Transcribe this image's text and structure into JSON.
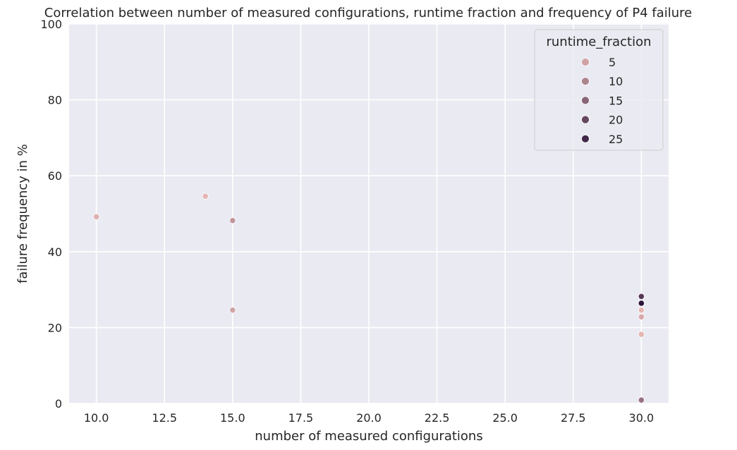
{
  "chart_data": {
    "type": "scatter",
    "title": "Correlation between number of measured configurations, runtime fraction and frequency of P4 failure",
    "xlabel": "number of measured configurations",
    "ylabel": "failure frequency in %",
    "xlim": [
      9.0,
      31.0
    ],
    "ylim": [
      0,
      100
    ],
    "xticks": [
      "10.0",
      "12.5",
      "15.0",
      "17.5",
      "20.0",
      "22.5",
      "25.0",
      "27.5",
      "30.0"
    ],
    "yticks": [
      "0",
      "20",
      "40",
      "60",
      "80",
      "100"
    ],
    "grid": true,
    "legend": {
      "title": "runtime_fraction",
      "placement": "top-right",
      "entries": [
        {
          "label": "5",
          "value": 5
        },
        {
          "label": "10",
          "value": 10
        },
        {
          "label": "15",
          "value": 15
        },
        {
          "label": "20",
          "value": 20
        },
        {
          "label": "25",
          "value": 25
        }
      ]
    },
    "hue_range": [
      1,
      28
    ],
    "points": [
      {
        "x": 10,
        "y": 49.2,
        "runtime_fraction": 3
      },
      {
        "x": 14,
        "y": 54.6,
        "runtime_fraction": 2
      },
      {
        "x": 15,
        "y": 48.2,
        "runtime_fraction": 7
      },
      {
        "x": 15,
        "y": 24.6,
        "runtime_fraction": 5
      },
      {
        "x": 30,
        "y": 28.2,
        "runtime_fraction": 22
      },
      {
        "x": 30,
        "y": 26.4,
        "runtime_fraction": 28
      },
      {
        "x": 30,
        "y": 24.6,
        "runtime_fraction": 2
      },
      {
        "x": 30,
        "y": 22.8,
        "runtime_fraction": 4
      },
      {
        "x": 30,
        "y": 18.2,
        "runtime_fraction": 2
      },
      {
        "x": 30,
        "y": 0.9,
        "runtime_fraction": 13
      }
    ]
  }
}
